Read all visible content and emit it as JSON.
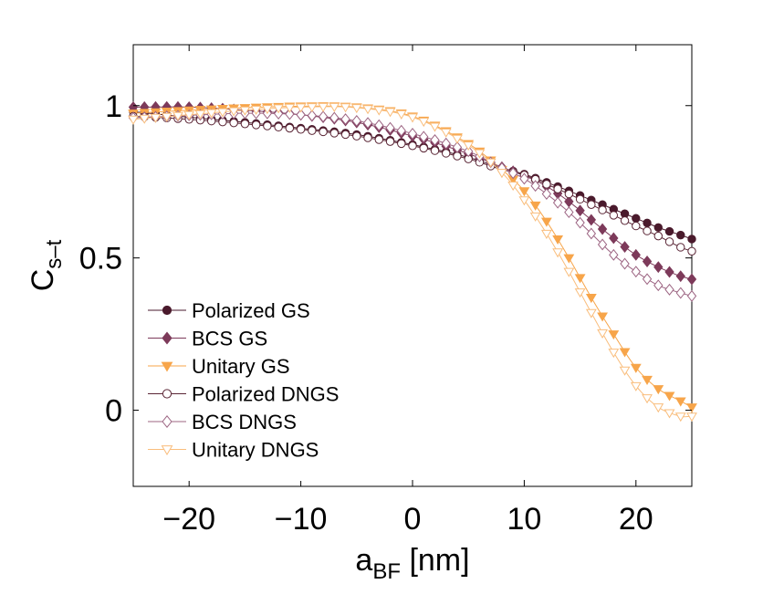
{
  "chart_data": {
    "type": "line",
    "title": "",
    "xlabel": {
      "main": "a",
      "sub": "BF",
      "unit": " [nm]"
    },
    "ylabel": {
      "main": "C",
      "sub": "s–t"
    },
    "xlim": [
      -25,
      25
    ],
    "ylim": [
      -0.25,
      1.2
    ],
    "xticks": [
      -20,
      -10,
      0,
      10,
      20
    ],
    "xtick_labels": [
      "−20",
      "−10",
      "0",
      "10",
      "20"
    ],
    "yticks": [
      0,
      0.5,
      1
    ],
    "ytick_labels": [
      "0",
      "0.5",
      "1"
    ],
    "grid": false,
    "legend_position": "lower-left",
    "x": [
      -25,
      -20,
      -15,
      -10,
      -5,
      0,
      5,
      8,
      10,
      12,
      14,
      16,
      18,
      20,
      22,
      24,
      25
    ],
    "series": [
      {
        "name": "Polarized GS",
        "color": "#4a1a2c",
        "marker": "circle",
        "filled": true,
        "values": [
          0.98,
          0.962,
          0.945,
          0.926,
          0.905,
          0.872,
          0.83,
          0.795,
          0.775,
          0.748,
          0.72,
          0.69,
          0.66,
          0.63,
          0.6,
          0.575,
          0.562
        ]
      },
      {
        "name": "BCS GS",
        "color": "#7d3a5a",
        "marker": "diamond",
        "filled": true,
        "values": [
          0.995,
          0.995,
          0.985,
          0.97,
          0.945,
          0.9,
          0.842,
          0.798,
          0.77,
          0.735,
          0.685,
          0.625,
          0.565,
          0.51,
          0.47,
          0.44,
          0.43
        ]
      },
      {
        "name": "Unitary GS",
        "color": "#f7a54a",
        "marker": "triangle-down",
        "filled": true,
        "values": [
          0.975,
          0.985,
          0.993,
          0.998,
          0.995,
          0.965,
          0.875,
          0.79,
          0.72,
          0.62,
          0.5,
          0.37,
          0.25,
          0.14,
          0.07,
          0.03,
          0.01
        ]
      },
      {
        "name": "Polarized DNGS",
        "color": "#5a2535",
        "marker": "circle",
        "filled": false,
        "values": [
          0.965,
          0.955,
          0.94,
          0.922,
          0.9,
          0.868,
          0.825,
          0.79,
          0.772,
          0.742,
          0.71,
          0.675,
          0.64,
          0.605,
          0.572,
          0.535,
          0.522
        ]
      },
      {
        "name": "BCS DNGS",
        "color": "#9c6482",
        "marker": "diamond",
        "filled": false,
        "values": [
          0.96,
          0.968,
          0.975,
          0.97,
          0.95,
          0.908,
          0.85,
          0.795,
          0.76,
          0.71,
          0.65,
          0.58,
          0.51,
          0.455,
          0.41,
          0.385,
          0.375
        ]
      },
      {
        "name": "Unitary DNGS",
        "color": "#f9bd7c",
        "marker": "triangle-down",
        "filled": false,
        "values": [
          0.955,
          0.97,
          0.985,
          0.995,
          0.993,
          0.962,
          0.87,
          0.78,
          0.69,
          0.58,
          0.455,
          0.32,
          0.19,
          0.08,
          0.01,
          -0.02,
          -0.02
        ]
      }
    ]
  }
}
